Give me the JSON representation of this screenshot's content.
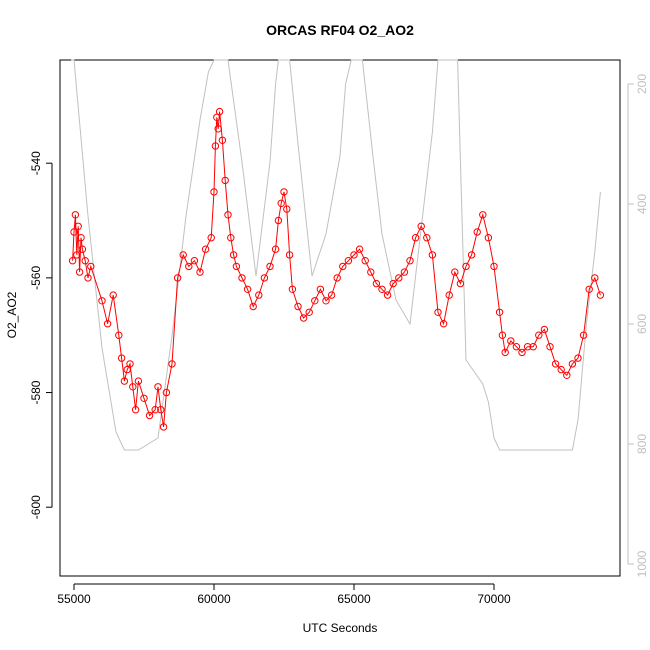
{
  "chart_data": {
    "type": "scatter",
    "title": "ORCAS RF04 O2_AO2",
    "xlabel": "UTC Seconds",
    "ylabel": "O2_AO2",
    "xlim": [
      54500,
      74500
    ],
    "ylim": [
      -612,
      -522
    ],
    "y2lim": [
      1020,
      160
    ],
    "xticks": [
      55000,
      60000,
      65000,
      70000
    ],
    "yticks": [
      -540,
      -560,
      -580,
      -600
    ],
    "y2ticks": [
      200,
      400,
      600,
      800,
      1000
    ],
    "colors": {
      "series": "#ff0000",
      "secondary": "#c0c0c0",
      "axis": "#000000",
      "secondary_axis": "#c0c0c0"
    },
    "series": [
      {
        "style": "points-and-lines",
        "points": [
          [
            54950,
            -557
          ],
          [
            55000,
            -552
          ],
          [
            55050,
            -549
          ],
          [
            55100,
            -556
          ],
          [
            55150,
            -551
          ],
          [
            55200,
            -559
          ],
          [
            55250,
            -553
          ],
          [
            55300,
            -555
          ],
          [
            55400,
            -557
          ],
          [
            55500,
            -560
          ],
          [
            55600,
            -558
          ],
          [
            56000,
            -564
          ],
          [
            56200,
            -568
          ],
          [
            56400,
            -563
          ],
          [
            56600,
            -570
          ],
          [
            56700,
            -574
          ],
          [
            56800,
            -578
          ],
          [
            56900,
            -576
          ],
          [
            57000,
            -575
          ],
          [
            57100,
            -579
          ],
          [
            57200,
            -583
          ],
          [
            57300,
            -578
          ],
          [
            57500,
            -581
          ],
          [
            57700,
            -584
          ],
          [
            57900,
            -583
          ],
          [
            58000,
            -579
          ],
          [
            58100,
            -583
          ],
          [
            58200,
            -586
          ],
          [
            58300,
            -580
          ],
          [
            58500,
            -575
          ],
          [
            58700,
            -560
          ],
          [
            58900,
            -556
          ],
          [
            59100,
            -558
          ],
          [
            59300,
            -557
          ],
          [
            59500,
            -559
          ],
          [
            59700,
            -555
          ],
          [
            59900,
            -553
          ],
          [
            60000,
            -545
          ],
          [
            60050,
            -537
          ],
          [
            60100,
            -532
          ],
          [
            60150,
            -534
          ],
          [
            60200,
            -531
          ],
          [
            60300,
            -536
          ],
          [
            60400,
            -543
          ],
          [
            60500,
            -549
          ],
          [
            60600,
            -553
          ],
          [
            60700,
            -556
          ],
          [
            60800,
            -558
          ],
          [
            61000,
            -560
          ],
          [
            61200,
            -562
          ],
          [
            61400,
            -565
          ],
          [
            61600,
            -563
          ],
          [
            61800,
            -560
          ],
          [
            62000,
            -558
          ],
          [
            62200,
            -555
          ],
          [
            62300,
            -550
          ],
          [
            62400,
            -547
          ],
          [
            62500,
            -545
          ],
          [
            62600,
            -548
          ],
          [
            62700,
            -556
          ],
          [
            62800,
            -562
          ],
          [
            63000,
            -565
          ],
          [
            63200,
            -567
          ],
          [
            63400,
            -566
          ],
          [
            63600,
            -564
          ],
          [
            63800,
            -562
          ],
          [
            64000,
            -564
          ],
          [
            64200,
            -563
          ],
          [
            64400,
            -560
          ],
          [
            64600,
            -558
          ],
          [
            64800,
            -557
          ],
          [
            65000,
            -556
          ],
          [
            65200,
            -555
          ],
          [
            65400,
            -557
          ],
          [
            65600,
            -559
          ],
          [
            65800,
            -561
          ],
          [
            66000,
            -562
          ],
          [
            66200,
            -563
          ],
          [
            66400,
            -561
          ],
          [
            66600,
            -560
          ],
          [
            66800,
            -559
          ],
          [
            67000,
            -557
          ],
          [
            67200,
            -553
          ],
          [
            67400,
            -551
          ],
          [
            67600,
            -553
          ],
          [
            67800,
            -556
          ],
          [
            68000,
            -566
          ],
          [
            68200,
            -568
          ],
          [
            68400,
            -563
          ],
          [
            68600,
            -559
          ],
          [
            68800,
            -561
          ],
          [
            69000,
            -558
          ],
          [
            69200,
            -556
          ],
          [
            69400,
            -552
          ],
          [
            69600,
            -549
          ],
          [
            69800,
            -553
          ],
          [
            70000,
            -558
          ],
          [
            70200,
            -566
          ],
          [
            70300,
            -570
          ],
          [
            70400,
            -573
          ],
          [
            70600,
            -571
          ],
          [
            70800,
            -572
          ],
          [
            71000,
            -573
          ],
          [
            71200,
            -572
          ],
          [
            71400,
            -572
          ],
          [
            71600,
            -570
          ],
          [
            71800,
            -569
          ],
          [
            72000,
            -572
          ],
          [
            72200,
            -575
          ],
          [
            72400,
            -576
          ],
          [
            72600,
            -577
          ],
          [
            72800,
            -575
          ],
          [
            73000,
            -574
          ],
          [
            73200,
            -570
          ],
          [
            73400,
            -562
          ],
          [
            73600,
            -560
          ],
          [
            73800,
            -563
          ]
        ]
      },
      {
        "style": "secondary-line",
        "points": [
          [
            54900,
            160
          ],
          [
            55000,
            160
          ],
          [
            55500,
            420
          ],
          [
            56000,
            640
          ],
          [
            56500,
            780
          ],
          [
            56800,
            810
          ],
          [
            57300,
            810
          ],
          [
            58000,
            790
          ],
          [
            58500,
            620
          ],
          [
            59000,
            420
          ],
          [
            59500,
            260
          ],
          [
            59800,
            180
          ],
          [
            60000,
            160
          ],
          [
            60500,
            160
          ],
          [
            61000,
            330
          ],
          [
            61500,
            520
          ],
          [
            62000,
            330
          ],
          [
            62200,
            200
          ],
          [
            62300,
            160
          ],
          [
            62700,
            160
          ],
          [
            63000,
            300
          ],
          [
            63500,
            520
          ],
          [
            64000,
            450
          ],
          [
            64500,
            320
          ],
          [
            64700,
            200
          ],
          [
            64900,
            160
          ],
          [
            65300,
            160
          ],
          [
            65700,
            330
          ],
          [
            66000,
            450
          ],
          [
            66500,
            560
          ],
          [
            67000,
            600
          ],
          [
            67500,
            400
          ],
          [
            67800,
            280
          ],
          [
            68000,
            160
          ],
          [
            68700,
            160
          ],
          [
            69000,
            660
          ],
          [
            69300,
            680
          ],
          [
            69600,
            700
          ],
          [
            69800,
            730
          ],
          [
            70000,
            790
          ],
          [
            70200,
            810
          ],
          [
            70500,
            810
          ],
          [
            71500,
            810
          ],
          [
            72500,
            810
          ],
          [
            72800,
            810
          ],
          [
            73000,
            760
          ],
          [
            73300,
            600
          ],
          [
            73600,
            480
          ],
          [
            73800,
            380
          ]
        ]
      }
    ]
  }
}
